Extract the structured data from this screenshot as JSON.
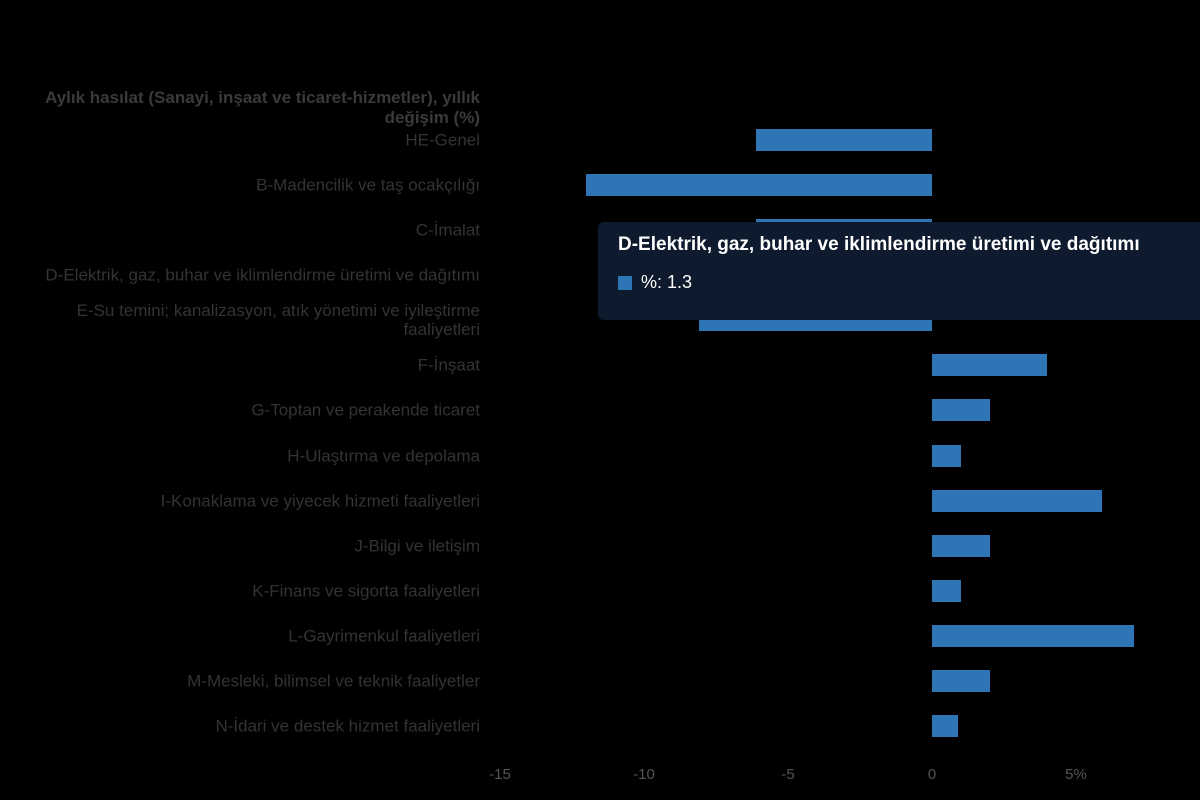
{
  "chart_data": {
    "type": "bar",
    "orientation": "horizontal",
    "title": "Aylık hasılat (Sanayi, inşaat ve ticaret-hizmetler), yıllık değişim (%)",
    "categories": [
      "HE-Genel",
      "B-Madencilik ve taş ocakçılığı",
      "C-İmalat",
      "D-Elektrik, gaz, buhar ve iklimlendirme üretimi ve dağıtımı",
      "E-Su temini; kanalizasyon, atık yönetimi ve iyileştirme faaliyetleri",
      "F-İnşaat",
      "G-Toptan ve perakende ticaret",
      "H-Ulaştırma ve depolama",
      "I-Konaklama ve yiyecek hizmeti faaliyetleri",
      "J-Bilgi ve iletişim",
      "K-Finans ve sigorta faaliyetleri",
      "L-Gayrimenkul faaliyetleri",
      "M-Mesleki, bilimsel ve teknik faaliyetler",
      "N-İdari ve destek hizmet faaliyetleri"
    ],
    "series": [
      {
        "name": "%",
        "color": "#2e75b6",
        "values": [
          -6.1,
          -12.0,
          -6.1,
          1.3,
          -8.1,
          4.0,
          2.0,
          1.0,
          5.9,
          2.0,
          1.0,
          7.0,
          2.0,
          0.9
        ]
      }
    ],
    "xlim": [
      -15.5,
      9.3
    ],
    "x_ticks": [
      -15,
      -10,
      -5,
      0,
      5
    ],
    "x_tick_labels": [
      "-15",
      "-10",
      "-5",
      "0",
      "5%"
    ],
    "grid": false,
    "legend_position": "none"
  },
  "tooltip": {
    "title": "D-Elektrik, gaz, buhar ve iklimlendirme üretimi ve dağıtımı",
    "series_name": "%",
    "value": "1.3",
    "label": "%: 1.3",
    "marker_color": "#2e75b6",
    "background": "#0e1b2e"
  },
  "colors": {
    "bar": "#2e75b6",
    "category_label": "#333333",
    "tick_label": "#555555",
    "page_background": "#000000",
    "tooltip_text": "#ffffff"
  }
}
